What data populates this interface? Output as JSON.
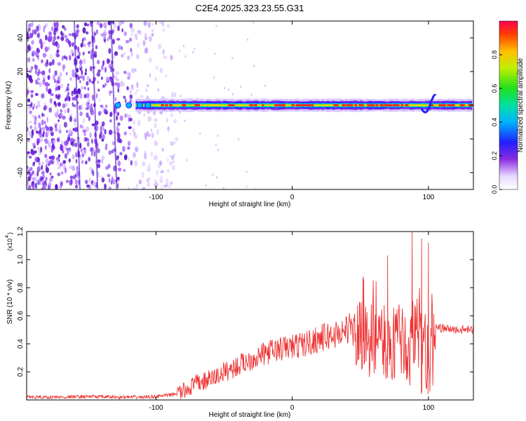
{
  "title": "C2E4.2025.323.23.55.G31",
  "chart_data": [
    {
      "type": "heatmap",
      "title": "C2E4.2025.323.23.55.G31",
      "xlabel": "Height of straight line (km)",
      "ylabel": "Frequency (Hz)",
      "xlim": [
        -195,
        133
      ],
      "ylim": [
        -50,
        50
      ],
      "xticks": [
        -100,
        0,
        100
      ],
      "yticks": [
        -40,
        -20,
        0,
        20,
        40
      ],
      "xtick_labels": [
        "-100",
        "0",
        "100"
      ],
      "ytick_labels": [
        "-40",
        "-20",
        "0",
        "20",
        "40"
      ],
      "colorbar": {
        "label": "Normalized spectral amplitude",
        "range": [
          0,
          1
        ],
        "ticks": [
          0.0,
          0.2,
          0.4,
          0.6,
          0.8
        ],
        "tick_labels": [
          "0.0",
          "0.2",
          "0.4",
          "0.6",
          "0.8"
        ]
      },
      "noise_region_x": [
        -195,
        -85
      ],
      "signal_band_x": [
        -115,
        133
      ],
      "signal_center_hz": 0
    },
    {
      "type": "line",
      "xlabel": "Height of straight line (km)",
      "ylabel": "SNR (10 * v/v)",
      "y_exponent": "(x10",
      "y_exponent_power": "4",
      "xlim": [
        -195,
        133
      ],
      "ylim": [
        0,
        1.2
      ],
      "xticks": [
        -100,
        0,
        100
      ],
      "xtick_labels": [
        "-100",
        "0",
        "100"
      ],
      "yticks": [
        0.2,
        0.4,
        0.6,
        0.8,
        1.0,
        1.2
      ],
      "ytick_labels": [
        "0.2",
        "0.4",
        "0.6",
        "0.8",
        "1.0",
        "1.2"
      ],
      "series": [
        {
          "name": "SNR",
          "color": "#ee3333",
          "x": [
            -195,
            -170,
            -150,
            -130,
            -110,
            -100,
            -90,
            -80,
            -75,
            -70,
            -65,
            -60,
            -55,
            -50,
            -45,
            -40,
            -35,
            -30,
            -25,
            -20,
            -15,
            -10,
            -5,
            0,
            5,
            10,
            15,
            20,
            25,
            30,
            35,
            40,
            42,
            45,
            50,
            55,
            60,
            65,
            70,
            75,
            80,
            85,
            90,
            95,
            100,
            103,
            105,
            110,
            120,
            133
          ],
          "y": [
            0.02,
            0.02,
            0.025,
            0.02,
            0.02,
            0.025,
            0.035,
            0.06,
            0.09,
            0.12,
            0.13,
            0.15,
            0.17,
            0.2,
            0.22,
            0.24,
            0.27,
            0.29,
            0.31,
            0.33,
            0.35,
            0.36,
            0.37,
            0.38,
            0.39,
            0.4,
            0.42,
            0.44,
            0.45,
            0.46,
            0.48,
            0.5,
            0.52,
            0.46,
            0.42,
            0.41,
            0.4,
            0.42,
            0.38,
            0.42,
            0.4,
            0.38,
            0.48,
            0.4,
            0.3,
            0.3,
            0.52,
            0.51,
            0.5,
            0.5
          ]
        }
      ],
      "peaks": [
        {
          "x": 52,
          "y": 0.88
        },
        {
          "x": 70,
          "y": 1.03
        },
        {
          "x": 88,
          "y": 1.2
        },
        {
          "x": 95,
          "y": 1.15
        },
        {
          "x": 100,
          "y": 1.12
        }
      ]
    }
  ]
}
